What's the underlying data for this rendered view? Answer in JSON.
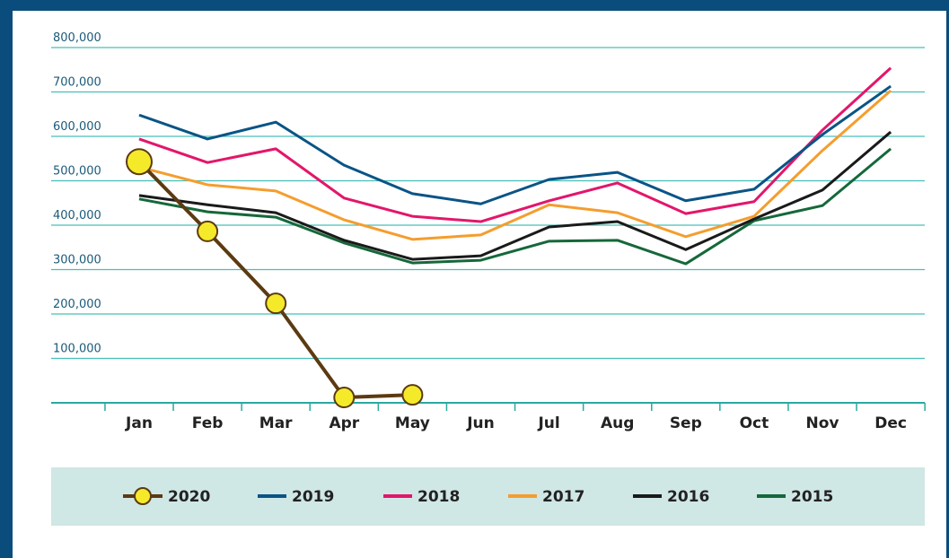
{
  "chart_data": {
    "type": "line",
    "categories": [
      "Jan",
      "Feb",
      "Mar",
      "Apr",
      "May",
      "Jun",
      "Jul",
      "Aug",
      "Sep",
      "Oct",
      "Nov",
      "Dec"
    ],
    "ylim": [
      0,
      800000
    ],
    "yticks": [
      {
        "value": 100000,
        "label": "100,000"
      },
      {
        "value": 200000,
        "label": "200,000"
      },
      {
        "value": 300000,
        "label": "300,000"
      },
      {
        "value": 400000,
        "label": "400,000"
      },
      {
        "value": 500000,
        "label": "500,000"
      },
      {
        "value": 600000,
        "label": "600,000"
      },
      {
        "value": 700000,
        "label": "700,000"
      },
      {
        "value": 800000,
        "label": "800,000"
      }
    ],
    "grid": true,
    "legend": "bottom",
    "series": [
      {
        "name": "2020",
        "color": "#5c3a12",
        "marker": "#f5ea2a",
        "values": [
          543000,
          386000,
          224000,
          12000,
          18000,
          null,
          null,
          null,
          null,
          null,
          null,
          null
        ]
      },
      {
        "name": "2019",
        "color": "#0a5486",
        "values": [
          648000,
          594000,
          632000,
          535000,
          471000,
          448000,
          503000,
          519000,
          455000,
          481000,
          604000,
          713000
        ]
      },
      {
        "name": "2018",
        "color": "#e3166b",
        "values": [
          594000,
          541000,
          572000,
          461000,
          420000,
          408000,
          455000,
          495000,
          426000,
          453000,
          614000,
          754000
        ]
      },
      {
        "name": "2017",
        "color": "#f59d2e",
        "values": [
          531000,
          491000,
          477000,
          412000,
          368000,
          378000,
          446000,
          428000,
          374000,
          420000,
          568000,
          703000
        ]
      },
      {
        "name": "2016",
        "color": "#1a1a1a",
        "values": [
          467000,
          446000,
          428000,
          366000,
          323000,
          331000,
          396000,
          408000,
          345000,
          414000,
          479000,
          610000
        ]
      },
      {
        "name": "2015",
        "color": "#15683a",
        "values": [
          459000,
          430000,
          418000,
          360000,
          315000,
          321000,
          364000,
          366000,
          313000,
          410000,
          444000,
          572000
        ]
      }
    ]
  }
}
